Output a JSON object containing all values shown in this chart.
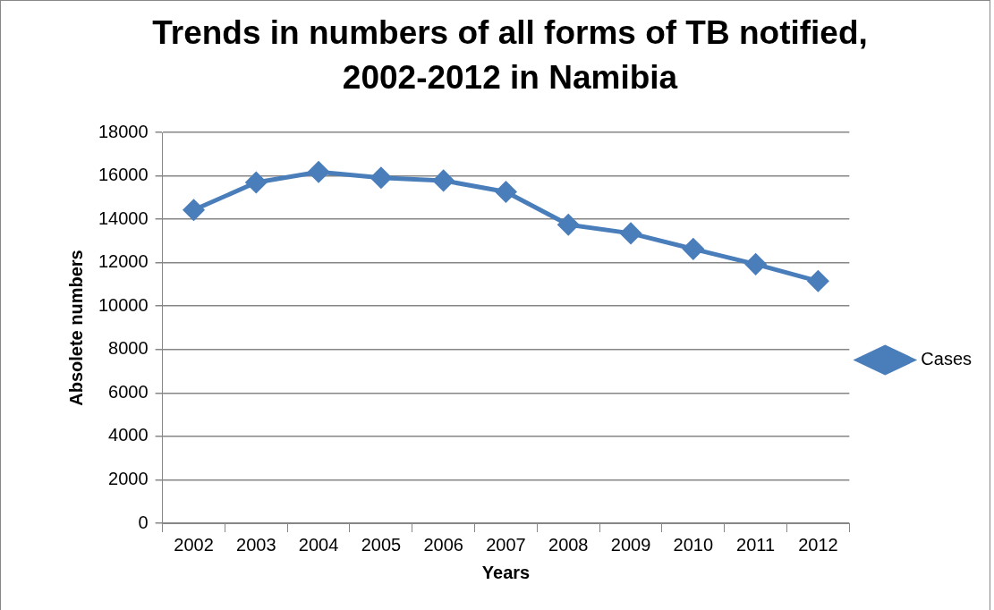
{
  "chart_data": {
    "type": "line",
    "title": "Trends in numbers of all forms of TB notified, 2002-2012 in Namibia",
    "xlabel": "Years",
    "ylabel": "Absolete numbers",
    "categories": [
      "2002",
      "2003",
      "2004",
      "2005",
      "2006",
      "2007",
      "2008",
      "2009",
      "2010",
      "2011",
      "2012"
    ],
    "series": [
      {
        "name": "Cases",
        "color": "#4a7ebb",
        "values": [
          14430,
          15690,
          16180,
          15910,
          15780,
          15260,
          13750,
          13350,
          12630,
          11930,
          11150
        ]
      }
    ],
    "ylim": [
      0,
      18000
    ],
    "yticks": [
      0,
      2000,
      4000,
      6000,
      8000,
      10000,
      12000,
      14000,
      16000,
      18000
    ],
    "grid": "y",
    "legend": "right",
    "marker": "diamond",
    "line_style": "solid"
  }
}
